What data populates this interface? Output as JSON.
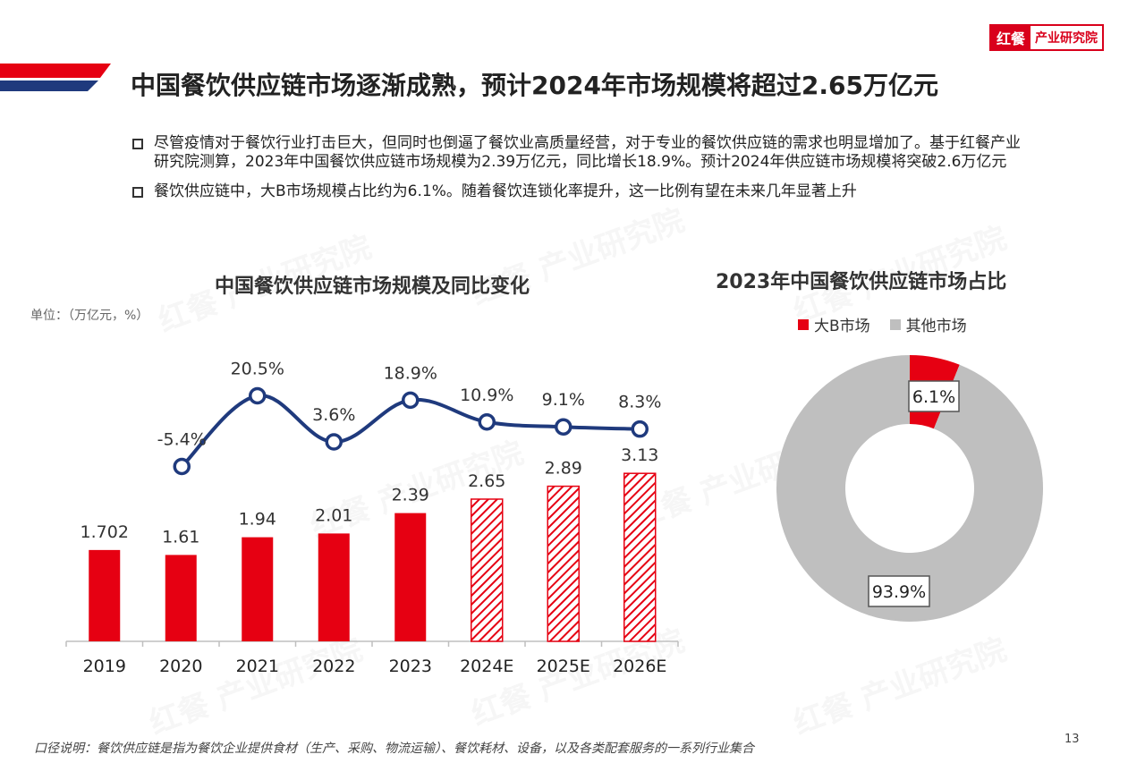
{
  "logo": {
    "mark": "红餐",
    "text": "产业研究院"
  },
  "page_title": "中国餐饮供应链市场逐渐成熟，预计2024年市场规模将超过2.65万亿元",
  "bullets": [
    "尽管疫情对于餐饮行业打击巨大，但同时也倒逼了餐饮业高质量经营，对于专业的餐饮供应链的需求也明显增加了。基于红餐产业研究院测算，2023年中国餐饮供应链市场规模为2.39万亿元，同比增长18.9%。预计2024年供应链市场规模将突破2.6万亿元",
    "餐饮供应链中，大B市场规模占比约为6.1%。随着餐饮连锁化率提升，这一比例有望在未来几年显著上升"
  ],
  "watermark_text": "红餐 产业研究院",
  "chart_data": [
    {
      "type": "bar",
      "title": "中国餐饮供应链市场规模及同比变化",
      "unit_label": "单位：（万亿元，%）",
      "categories": [
        "2019",
        "2020",
        "2021",
        "2022",
        "2023",
        "2024E",
        "2025E",
        "2026E"
      ],
      "bar_values": [
        1.702,
        1.61,
        1.94,
        2.01,
        2.39,
        2.65,
        2.89,
        3.13
      ],
      "bar_labels": [
        "1.702",
        "1.61",
        "1.94",
        "2.01",
        "2.39",
        "2.65",
        "2.89",
        "3.13"
      ],
      "estimated": [
        false,
        false,
        false,
        false,
        false,
        true,
        true,
        true
      ],
      "line_values": [
        -5.4,
        20.5,
        3.6,
        18.9,
        10.9,
        9.1,
        8.3
      ],
      "line_labels": [
        "-5.4%",
        "20.5%",
        "3.6%",
        "18.9%",
        "10.9%",
        "9.1%",
        "8.3%"
      ],
      "line_categories": [
        "2020",
        "2021",
        "2022",
        "2023",
        "2024E",
        "2025E",
        "2026E"
      ],
      "bar_color": "#e60012",
      "line_color": "#1f3a7d",
      "ylim": [
        0,
        3.5
      ],
      "grid": false
    },
    {
      "type": "pie",
      "title": "2023年中国餐饮供应链市场占比",
      "labels": [
        "大B市场",
        "其他市场"
      ],
      "values": [
        6.1,
        93.9
      ],
      "value_labels": [
        "6.1%",
        "93.9%"
      ],
      "colors": [
        "#e60012",
        "#bfbfbf"
      ],
      "legend": "top"
    }
  ],
  "footnote": "口径说明：餐饮供应链是指为餐饮企业提供食材（生产、采购、物流运输）、餐饮耗材、设备，以及各类配套服务的一系列行业集合",
  "page_number": "13"
}
